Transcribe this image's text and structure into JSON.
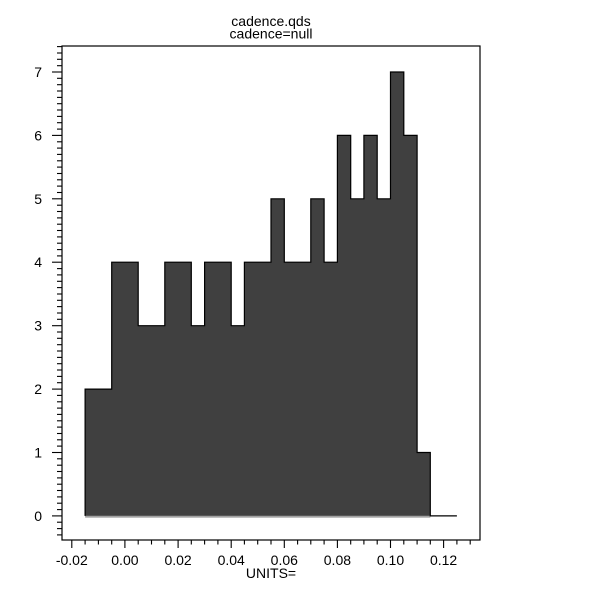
{
  "window": {
    "background": "#ffffff"
  },
  "title": {
    "line1": "cadence.qds",
    "line2": "cadence=null"
  },
  "chart_data": {
    "type": "bar",
    "subtype": "histogram",
    "title": "cadence.qds",
    "subtitle": "cadence=null",
    "xlabel": "UNITS=",
    "ylabel": "",
    "bin_start": -0.015,
    "bin_width": 0.005,
    "counts": [
      2,
      2,
      4,
      4,
      3,
      3,
      4,
      4,
      3,
      4,
      4,
      3,
      4,
      4,
      5,
      4,
      4,
      5,
      4,
      6,
      5,
      6,
      5,
      7,
      6,
      1,
      0,
      0
    ],
    "xlim": [
      -0.0237,
      0.1337
    ],
    "ylim": [
      -0.38,
      7.41
    ],
    "x_major_tick_step": 0.02,
    "x_minor_tick_step": 0.005,
    "x_tick_labels": [
      "-0.02",
      "0.00",
      "0.02",
      "0.04",
      "0.06",
      "0.08",
      "0.10",
      "0.12"
    ],
    "y_major_tick_step": 1,
    "y_minor_tick_step": 0.1,
    "y_tick_labels": [
      "0",
      "1",
      "2",
      "3",
      "4",
      "5",
      "6",
      "7"
    ],
    "grid": false,
    "legend_position": "none",
    "colors": {
      "bar_fill": "#404040",
      "bar_outline": "#000000",
      "baseline_line": "#828282",
      "axis": "#000000",
      "text": "#000000",
      "background": "#ffffff"
    }
  }
}
